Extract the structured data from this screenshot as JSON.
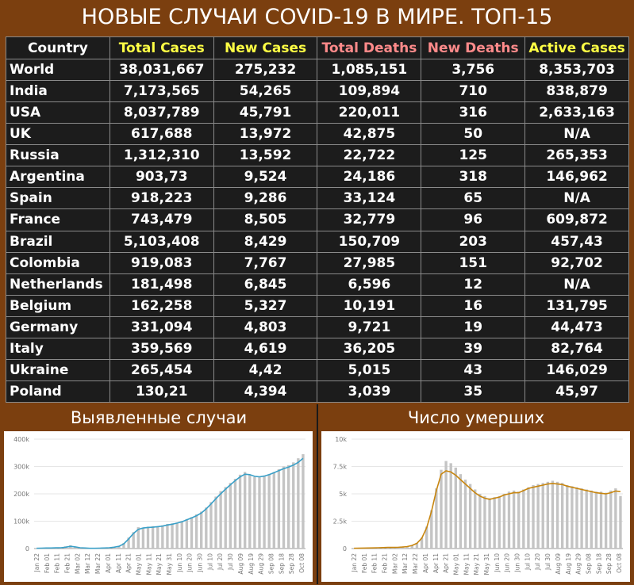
{
  "title": "НОВЫЕ СЛУЧАИ COVID-19 В МИРЕ. ТОП-15",
  "table": {
    "headers": [
      "Country",
      "Total Cases",
      "New Cases",
      "Total Deaths",
      "New Deaths",
      "Active Cases"
    ],
    "rows": [
      [
        "World",
        "38,031,667",
        "275,232",
        "1,085,151",
        "3,756",
        "8,353,703"
      ],
      [
        "India",
        "7,173,565",
        "54,265",
        "109,894",
        "710",
        "838,879"
      ],
      [
        "USA",
        "8,037,789",
        "45,791",
        "220,011",
        "316",
        "2,633,163"
      ],
      [
        "UK",
        "617,688",
        "13,972",
        "42,875",
        "50",
        "N/A"
      ],
      [
        "Russia",
        "1,312,310",
        "13,592",
        "22,722",
        "125",
        "265,353"
      ],
      [
        "Argentina",
        "903,73",
        "9,524",
        "24,186",
        "318",
        "146,962"
      ],
      [
        "Spain",
        "918,223",
        "9,286",
        "33,124",
        "65",
        "N/A"
      ],
      [
        "France",
        "743,479",
        "8,505",
        "32,779",
        "96",
        "609,872"
      ],
      [
        "Brazil",
        "5,103,408",
        "8,429",
        "150,709",
        "203",
        "457,43"
      ],
      [
        "Colombia",
        "919,083",
        "7,767",
        "27,985",
        "151",
        "92,702"
      ],
      [
        "Netherlands",
        "181,498",
        "6,845",
        "6,596",
        "12",
        "N/A"
      ],
      [
        "Belgium",
        "162,258",
        "5,327",
        "10,191",
        "16",
        "131,795"
      ],
      [
        "Germany",
        "331,094",
        "4,803",
        "9,721",
        "19",
        "44,473"
      ],
      [
        "Italy",
        "359,569",
        "4,619",
        "36,205",
        "39",
        "82,764"
      ],
      [
        "Ukraine",
        "265,454",
        "4,42",
        "5,015",
        "43",
        "146,029"
      ],
      [
        "Poland",
        "130,21",
        "4,394",
        "3,039",
        "35",
        "45,97"
      ]
    ]
  },
  "colors": {
    "background": "#7b3f0f",
    "table_bg": "#1c1c1c",
    "header_yellow": "#ffff44",
    "header_pink": "#ff8a8a",
    "cases_line": "#3aa0c8",
    "deaths_line": "#c8860f",
    "bars": "#c4c4c4"
  },
  "chart_data": [
    {
      "type": "bar",
      "title": "Выявленные случаи",
      "ylim": [
        0,
        400000
      ],
      "yticks": [
        0,
        100000,
        200000,
        300000,
        400000
      ],
      "ytick_labels": [
        "0",
        "100k",
        "200k",
        "300k",
        "400k"
      ],
      "xtick_labels": [
        "Jan 22",
        "Feb 01",
        "Feb 11",
        "Feb 21",
        "Mar 02",
        "Mar 12",
        "Mar 22",
        "Apr 01",
        "Apr 11",
        "Apr 21",
        "May 01",
        "May 11",
        "May 21",
        "May 31",
        "Jun 10",
        "Jun 20",
        "Jun 30",
        "Jul 10",
        "Jul 20",
        "Jul 30",
        "Aug 09",
        "Aug 19",
        "Aug 29",
        "Sep 08",
        "Sep 18",
        "Sep 28",
        "Oct 08"
      ],
      "series": [
        {
          "kind": "bar",
          "values": [
            1000,
            2000,
            2000,
            2000,
            3000,
            4000,
            8000,
            12000,
            6000,
            3000,
            2000,
            1000,
            1000,
            2000,
            2000,
            4000,
            6000,
            9000,
            20000,
            40000,
            60000,
            78000,
            75000,
            80000,
            82000,
            80000,
            85000,
            90000,
            92000,
            95000,
            100000,
            108000,
            115000,
            125000,
            135000,
            150000,
            170000,
            190000,
            210000,
            225000,
            240000,
            255000,
            270000,
            280000,
            270000,
            262000,
            260000,
            265000,
            272000,
            280000,
            290000,
            300000,
            305000,
            315000,
            330000,
            345000
          ]
        },
        {
          "kind": "line",
          "values": [
            1000,
            1500,
            2000,
            2000,
            2500,
            3000,
            5000,
            8000,
            6000,
            3000,
            2000,
            1000,
            1000,
            1500,
            2000,
            3000,
            5000,
            8000,
            17000,
            35000,
            55000,
            70000,
            75000,
            77000,
            78000,
            80000,
            82000,
            86000,
            89000,
            93000,
            98000,
            105000,
            112000,
            120000,
            130000,
            145000,
            163000,
            182000,
            200000,
            217000,
            233000,
            248000,
            262000,
            272000,
            270000,
            264000,
            262000,
            265000,
            270000,
            277000,
            285000,
            292000,
            298000,
            305000,
            315000,
            330000
          ]
        }
      ]
    },
    {
      "type": "bar",
      "title": "Число умерших",
      "ylim": [
        0,
        10000
      ],
      "yticks": [
        0,
        2500,
        5000,
        7500,
        10000
      ],
      "ytick_labels": [
        "0",
        "2.5k",
        "5k",
        "7.5k",
        "10k"
      ],
      "xtick_labels": [
        "Jan 22",
        "Feb 01",
        "Feb 11",
        "Feb 21",
        "Mar 02",
        "Mar 12",
        "Mar 22",
        "Apr 01",
        "Apr 11",
        "Apr 21",
        "May 01",
        "May 11",
        "May 21",
        "May 31",
        "Jun 10",
        "Jun 20",
        "Jun 30",
        "Jul 10",
        "Jul 20",
        "Jul 30",
        "Aug 09",
        "Aug 19",
        "Aug 29",
        "Sep 08",
        "Sep 18",
        "Sep 28",
        "Oct 08"
      ],
      "series": [
        {
          "kind": "bar",
          "values": [
            20,
            30,
            40,
            50,
            60,
            80,
            100,
            100,
            100,
            120,
            150,
            200,
            300,
            500,
            1000,
            2000,
            3500,
            5500,
            7200,
            8000,
            7800,
            7400,
            6800,
            6300,
            5900,
            5400,
            5000,
            4800,
            4600,
            4700,
            4800,
            5000,
            5200,
            5300,
            5200,
            5400,
            5600,
            5800,
            5900,
            6000,
            6100,
            6200,
            6100,
            6000,
            5800,
            5700,
            5600,
            5500,
            5400,
            5300,
            5200,
            5200,
            5100,
            5300,
            5500,
            4800
          ]
        },
        {
          "kind": "line",
          "values": [
            20,
            30,
            40,
            50,
            60,
            70,
            90,
            100,
            100,
            110,
            140,
            180,
            280,
            480,
            950,
            1900,
            3400,
            5300,
            6800,
            7100,
            7000,
            6700,
            6300,
            5900,
            5500,
            5100,
            4800,
            4600,
            4500,
            4600,
            4700,
            4900,
            5000,
            5100,
            5100,
            5300,
            5500,
            5600,
            5700,
            5800,
            5900,
            5950,
            5900,
            5850,
            5700,
            5600,
            5500,
            5400,
            5300,
            5200,
            5100,
            5050,
            5000,
            5100,
            5250,
            5200
          ]
        }
      ]
    }
  ]
}
